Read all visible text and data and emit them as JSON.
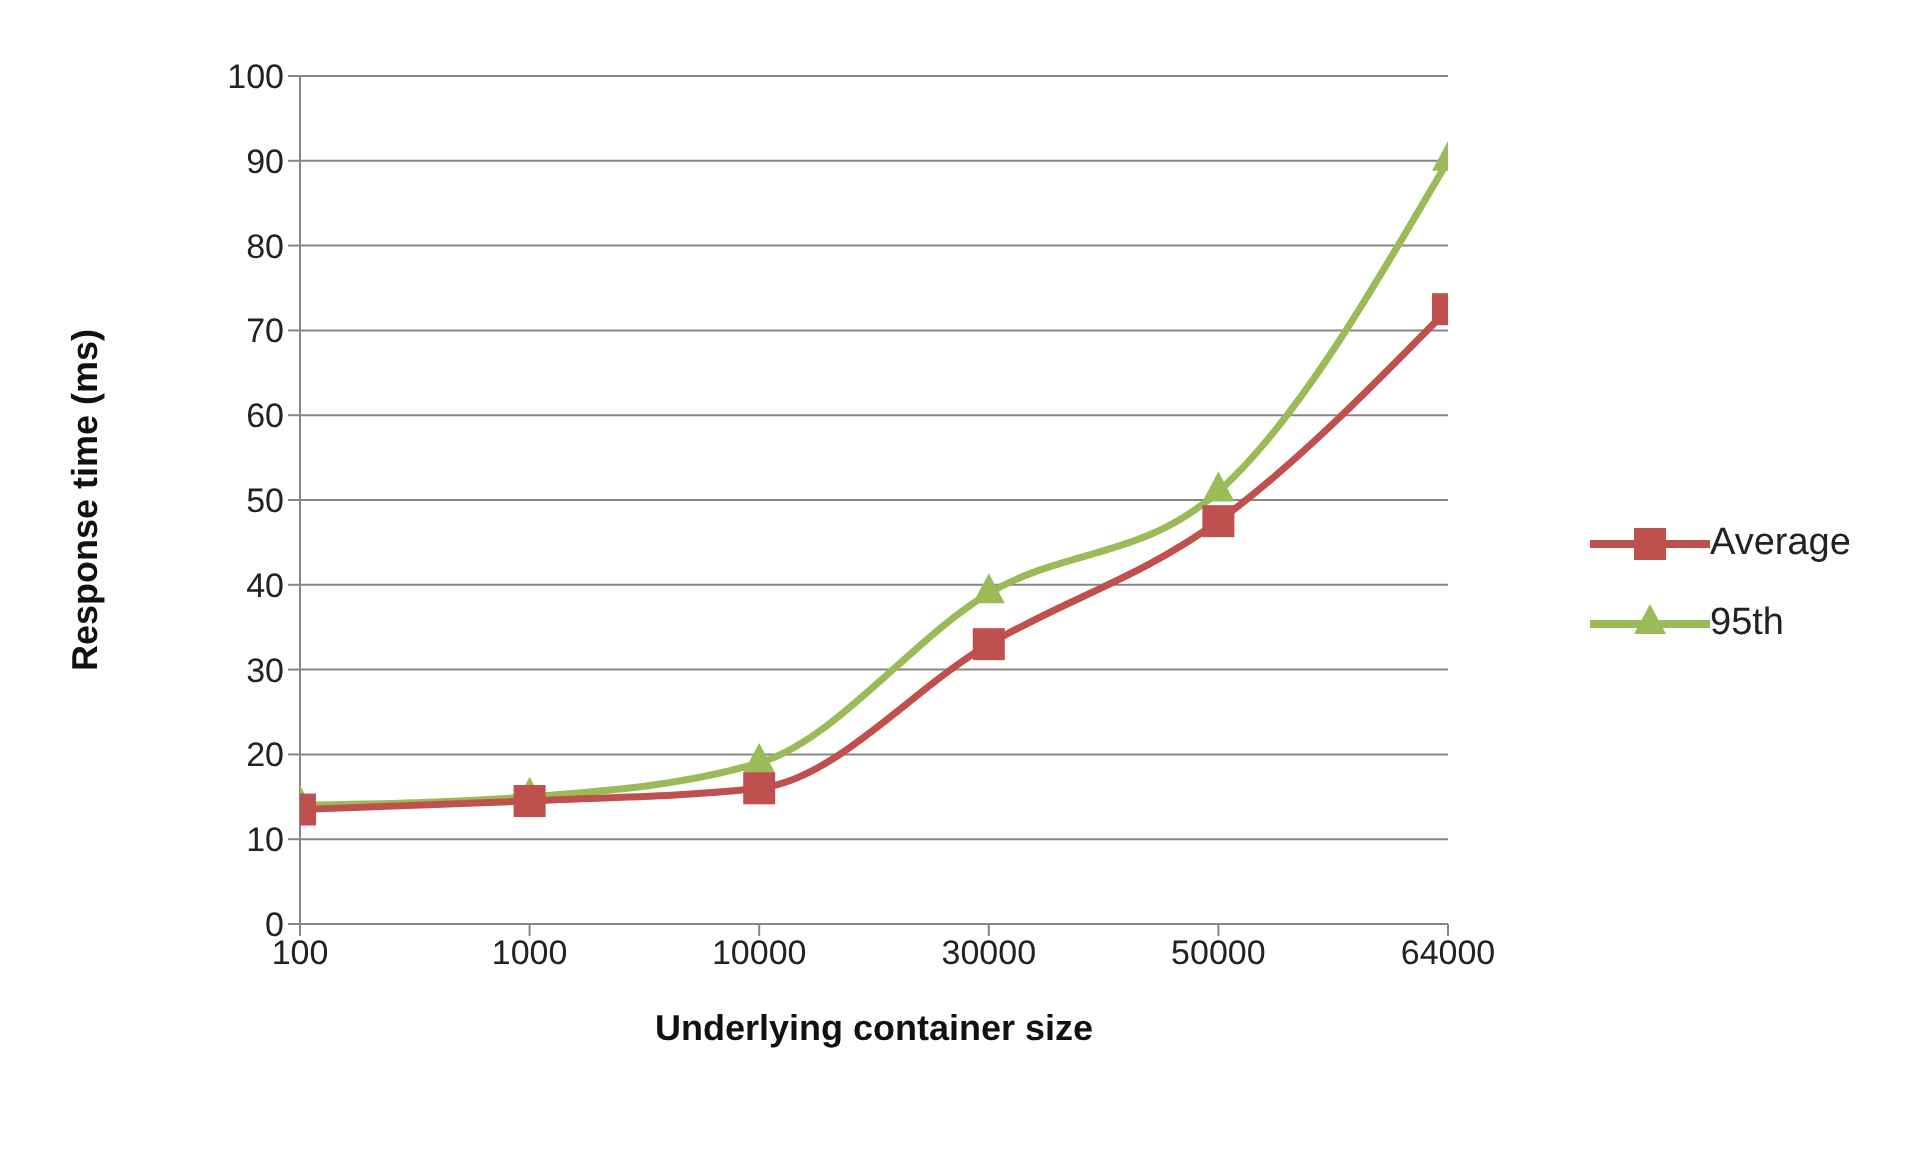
{
  "chart_data": {
    "type": "line",
    "xlabel": "Underlying container size",
    "ylabel": "Response time (ms)",
    "categories": [
      "100",
      "1000",
      "10000",
      "30000",
      "50000",
      "64000"
    ],
    "series": [
      {
        "name": "Average",
        "color": "#c0504d",
        "marker": "square",
        "values": [
          13.5,
          14.5,
          16,
          33,
          47.5,
          72.5
        ]
      },
      {
        "name": "95th",
        "color": "#9bbb59",
        "marker": "triangle",
        "values": [
          14,
          15,
          19,
          39,
          51,
          90
        ]
      }
    ],
    "ylim": [
      0,
      100
    ],
    "yticks": [
      0,
      10,
      20,
      30,
      40,
      50,
      60,
      70,
      80,
      90,
      100
    ],
    "grid": "y",
    "legend": "right",
    "line_style": "solid"
  }
}
